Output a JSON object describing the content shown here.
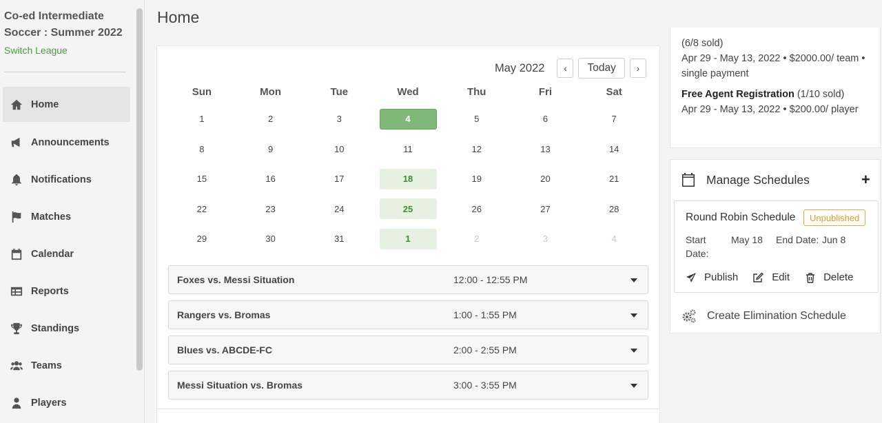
{
  "sidebar": {
    "league_title": "Co-ed Intermediate Soccer : Summer 2022",
    "switch_league": "Switch League",
    "items": [
      {
        "label": "Home",
        "icon": "home-icon"
      },
      {
        "label": "Announcements",
        "icon": "megaphone-icon"
      },
      {
        "label": "Notifications",
        "icon": "bell-icon"
      },
      {
        "label": "Matches",
        "icon": "flag-icon"
      },
      {
        "label": "Calendar",
        "icon": "calendar-icon"
      },
      {
        "label": "Reports",
        "icon": "table-icon"
      },
      {
        "label": "Standings",
        "icon": "trophy-icon"
      },
      {
        "label": "Teams",
        "icon": "users-icon"
      },
      {
        "label": "Players",
        "icon": "user-icon"
      }
    ]
  },
  "page": {
    "title": "Home"
  },
  "calendar": {
    "month": "May 2022",
    "prev": "‹",
    "next": "›",
    "today_label": "Today",
    "weekdays": [
      "Sun",
      "Mon",
      "Tue",
      "Wed",
      "Thu",
      "Fri",
      "Sat"
    ],
    "weeks": [
      [
        "1",
        "2",
        "3",
        "4",
        "5",
        "6",
        "7"
      ],
      [
        "8",
        "9",
        "10",
        "11",
        "12",
        "13",
        "14"
      ],
      [
        "15",
        "16",
        "17",
        "18",
        "19",
        "20",
        "21"
      ],
      [
        "22",
        "23",
        "24",
        "25",
        "26",
        "27",
        "28"
      ],
      [
        "29",
        "30",
        "31",
        "1",
        "2",
        "3",
        "4"
      ]
    ]
  },
  "matches": [
    {
      "name": "Foxes vs. Messi Situation",
      "time": "12:00 - 12:55 PM"
    },
    {
      "name": "Rangers vs. Bromas",
      "time": "1:00 - 1:55 PM"
    },
    {
      "name": "Blues vs. ABCDE-FC",
      "time": "2:00 - 2:55 PM"
    },
    {
      "name": "Messi Situation vs. Bromas",
      "time": "3:00 - 3:55 PM"
    }
  ],
  "registration": {
    "team_sold": "(6/8 sold)",
    "team_details": "Apr 29 - May 13, 2022 • $2000.00/ team • single payment",
    "free_agent_name": "Free Agent Registration",
    "free_agent_sold": " (1/10 sold)",
    "free_agent_details": "Apr 29 - May 13, 2022 • $200.00/ player"
  },
  "schedules": {
    "title": "Manage Schedules",
    "add": "+",
    "round_robin": {
      "name": "Round Robin Schedule",
      "status": "Unpublished",
      "status_color": "#e09a25",
      "start_label": "Start Date:",
      "start_value": "May 18",
      "end_label": "End Date:",
      "end_value": "Jun 8",
      "publish": "Publish",
      "edit": "Edit",
      "delete": "Delete"
    },
    "elimination": "Create Elimination Schedule"
  },
  "colors": {
    "accent_green": "#4a9a3d",
    "today_fill": "#7fb878",
    "event_fill": "#e6f1e2"
  }
}
